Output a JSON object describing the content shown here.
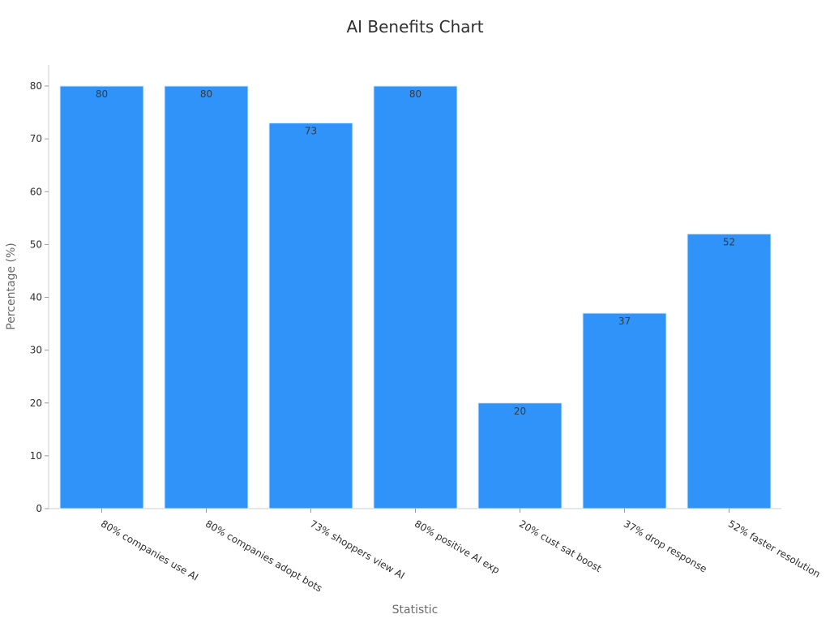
{
  "chart_data": {
    "type": "bar",
    "title": "AI Benefits Chart",
    "xlabel": "Statistic",
    "ylabel": "Percentage (%)",
    "categories": [
      "80% companies use AI",
      "80% companies adopt bots",
      "73% shoppers view AI",
      "80% positive AI exp",
      "20% cust sat boost",
      "37% drop response",
      "52% faster resolution"
    ],
    "values": [
      80,
      80,
      73,
      80,
      20,
      37,
      52
    ],
    "ylim": [
      0,
      84
    ],
    "yticks": [
      0,
      10,
      20,
      30,
      40,
      50,
      60,
      70,
      80
    ],
    "grid": false,
    "bar_color": "#2f93f9",
    "bar_edge_color": "#d8ecff"
  }
}
